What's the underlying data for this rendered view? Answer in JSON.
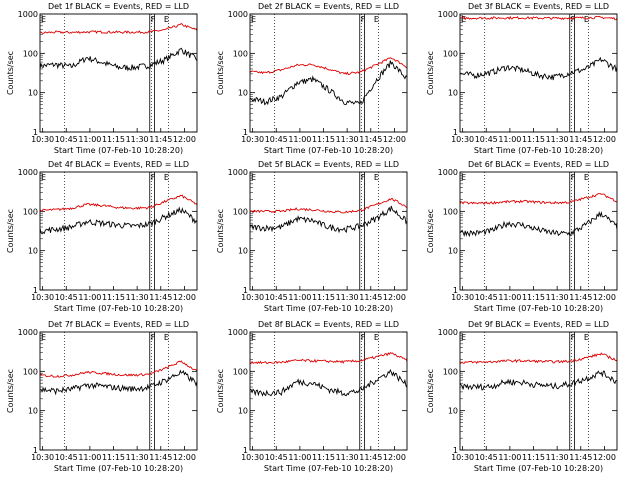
{
  "chart_data": [
    {
      "type": "line",
      "title": "Det 1f BLACK = Events, RED = LLD",
      "xlabel": "Start Time (07-Feb-10 10:28:20)",
      "ylabel": "Counts/sec",
      "xlim": [
        "10:28:20",
        "12:08:00"
      ],
      "ylim": [
        1,
        1000
      ],
      "yscale": "log",
      "markers": [
        "F",
        "E"
      ],
      "series": [
        {
          "color": "#000000",
          "level": [
            48,
            52,
            46,
            78,
            58,
            44,
            44,
            50,
            70,
            125,
            70
          ]
        },
        {
          "color": "#dd0000",
          "level": [
            330,
            345,
            340,
            350,
            350,
            345,
            345,
            350,
            400,
            540,
            390
          ]
        }
      ]
    },
    {
      "type": "line",
      "title": "Det 2f BLACK = Events, RED = LLD",
      "xlabel": "Start Time (07-Feb-10 10:28:20)",
      "ylabel": "Counts/sec",
      "xlim": [
        "10:28:20",
        "12:08:00"
      ],
      "ylim": [
        1,
        1000
      ],
      "yscale": "log",
      "markers": [
        "F",
        "E"
      ],
      "series": [
        {
          "color": "#000000",
          "level": [
            7,
            6,
            8,
            18,
            22,
            12,
            6,
            5,
            20,
            60,
            22
          ]
        },
        {
          "color": "#dd0000",
          "level": [
            34,
            32,
            38,
            50,
            52,
            40,
            30,
            33,
            50,
            78,
            45
          ]
        }
      ]
    },
    {
      "type": "line",
      "title": "Det 3f BLACK = Events, RED = LLD",
      "xlabel": "Start Time (07-Feb-10 10:28:20)",
      "ylabel": "Counts/sec",
      "xlim": [
        "10:28:20",
        "12:08:00"
      ],
      "ylim": [
        1,
        1000
      ],
      "yscale": "log",
      "markers": [
        "F",
        "E"
      ],
      "series": [
        {
          "color": "#000000",
          "level": [
            30,
            28,
            33,
            45,
            38,
            28,
            25,
            32,
            40,
            70,
            40
          ]
        },
        {
          "color": "#dd0000",
          "level": [
            780,
            790,
            790,
            800,
            800,
            790,
            780,
            790,
            800,
            820,
            760
          ]
        }
      ]
    },
    {
      "type": "line",
      "title": "Det 4f BLACK = Events, RED = LLD",
      "xlabel": "Start Time (07-Feb-10 10:28:20)",
      "ylabel": "Counts/sec",
      "xlim": [
        "10:28:20",
        "12:08:00"
      ],
      "ylim": [
        1,
        1000
      ],
      "yscale": "log",
      "markers": [
        "F",
        "E"
      ],
      "series": [
        {
          "color": "#000000",
          "level": [
            32,
            35,
            40,
            55,
            50,
            45,
            42,
            48,
            75,
            110,
            55
          ]
        },
        {
          "color": "#dd0000",
          "level": [
            105,
            110,
            120,
            150,
            140,
            125,
            120,
            125,
            180,
            250,
            150
          ]
        }
      ]
    },
    {
      "type": "line",
      "title": "Det 5f BLACK = Events, RED = LLD",
      "xlabel": "Start Time (07-Feb-10 10:28:20)",
      "ylabel": "Counts/sec",
      "xlim": [
        "10:28:20",
        "12:08:00"
      ],
      "ylim": [
        1,
        1000
      ],
      "yscale": "log",
      "markers": [
        "F",
        "E"
      ],
      "series": [
        {
          "color": "#000000",
          "level": [
            40,
            38,
            40,
            65,
            58,
            40,
            35,
            42,
            65,
            120,
            55
          ]
        },
        {
          "color": "#dd0000",
          "level": [
            100,
            100,
            100,
            115,
            110,
            100,
            95,
            105,
            145,
            210,
            130
          ]
        }
      ]
    },
    {
      "type": "line",
      "title": "Det 6f BLACK = Events, RED = LLD",
      "xlabel": "Start Time (07-Feb-10 10:28:20)",
      "ylabel": "Counts/sec",
      "xlim": [
        "10:28:20",
        "12:08:00"
      ],
      "ylim": [
        1,
        1000
      ],
      "yscale": "log",
      "markers": [
        "F",
        "E"
      ],
      "series": [
        {
          "color": "#000000",
          "level": [
            30,
            28,
            32,
            50,
            45,
            34,
            28,
            27,
            45,
            90,
            40
          ]
        },
        {
          "color": "#dd0000",
          "level": [
            165,
            160,
            165,
            175,
            180,
            170,
            165,
            170,
            220,
            280,
            180
          ]
        }
      ]
    },
    {
      "type": "line",
      "title": "Det 7f BLACK = Events, RED = LLD",
      "xlabel": "Start Time (07-Feb-10 10:28:20)",
      "ylabel": "Counts/sec",
      "xlim": [
        "10:28:20",
        "12:08:00"
      ],
      "ylim": [
        1,
        1000
      ],
      "yscale": "log",
      "markers": [
        "F",
        "E"
      ],
      "series": [
        {
          "color": "#000000",
          "level": [
            35,
            32,
            35,
            45,
            42,
            38,
            36,
            40,
            60,
            95,
            50
          ]
        },
        {
          "color": "#dd0000",
          "level": [
            80,
            75,
            80,
            95,
            90,
            82,
            80,
            85,
            120,
            180,
            100
          ]
        }
      ]
    },
    {
      "type": "line",
      "title": "Det 8f BLACK = Events, RED = LLD",
      "xlabel": "Start Time (07-Feb-10 10:28:20)",
      "ylabel": "Counts/sec",
      "xlim": [
        "10:28:20",
        "12:08:00"
      ],
      "ylim": [
        1,
        1000
      ],
      "yscale": "log",
      "markers": [
        "F",
        "E"
      ],
      "series": [
        {
          "color": "#000000",
          "level": [
            30,
            28,
            30,
            55,
            50,
            35,
            28,
            32,
            60,
            100,
            45
          ]
        },
        {
          "color": "#dd0000",
          "level": [
            170,
            165,
            170,
            190,
            185,
            180,
            175,
            185,
            230,
            290,
            190
          ]
        }
      ]
    },
    {
      "type": "line",
      "title": "Det 9f BLACK = Events, RED = LLD",
      "xlabel": "Start Time (07-Feb-10 10:28:20)",
      "ylabel": "Counts/sec",
      "xlim": [
        "10:28:20",
        "12:08:00"
      ],
      "ylim": [
        1,
        1000
      ],
      "yscale": "log",
      "markers": [
        "F",
        "E"
      ],
      "series": [
        {
          "color": "#000000",
          "level": [
            42,
            40,
            42,
            55,
            52,
            45,
            42,
            48,
            65,
            95,
            55
          ]
        },
        {
          "color": "#dd0000",
          "level": [
            170,
            170,
            175,
            185,
            185,
            180,
            175,
            180,
            220,
            280,
            190
          ]
        }
      ]
    }
  ],
  "axes": {
    "x_ticks": [
      "10:30",
      "10:45",
      "11:00",
      "11:15",
      "11:30",
      "11:45",
      "12:00"
    ],
    "y_ticks": [
      "1",
      "10",
      "100",
      "1000"
    ]
  }
}
